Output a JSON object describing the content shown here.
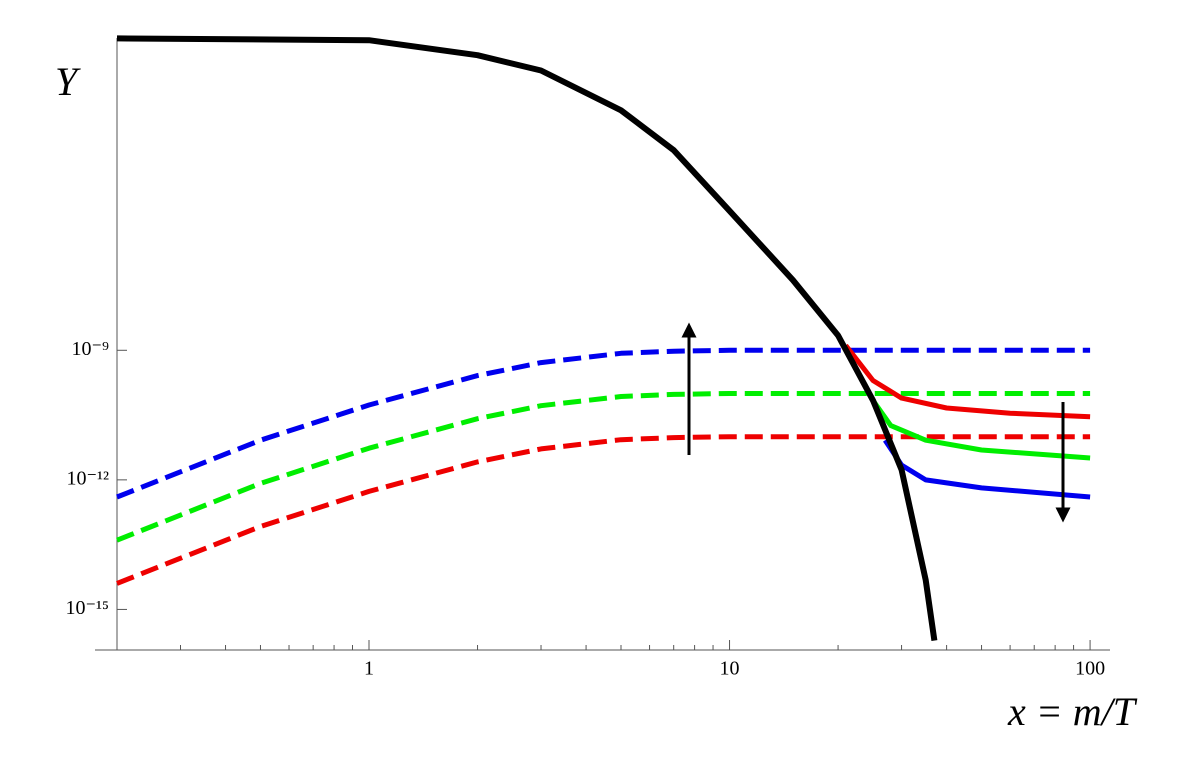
{
  "chart_data": {
    "type": "line",
    "y_label": "Y",
    "x_label": "x = m/T",
    "xlog": true,
    "ylog": true,
    "xlim": [
      0.2,
      110
    ],
    "ylim": [
      1.15e-16,
      0.017
    ],
    "xticks": [
      1,
      10,
      100
    ],
    "xminorticks": [
      0.3,
      0.4,
      0.5,
      0.6,
      0.7,
      0.8,
      0.9,
      2,
      3,
      4,
      5,
      6,
      7,
      8,
      9,
      20,
      30,
      40,
      50,
      60,
      70,
      80,
      90
    ],
    "yticks": [
      {
        "value": 1e-09,
        "label": "10⁻⁹"
      },
      {
        "value": 1e-12,
        "label": "10⁻¹²"
      },
      {
        "value": 1e-15,
        "label": "10⁻¹⁵"
      }
    ],
    "series": [
      {
        "color": "#0000ee",
        "dashed": true,
        "x": [
          0.2,
          0.5,
          1,
          2,
          3,
          5,
          7,
          10,
          100
        ],
        "values": [
          4e-13,
          8.3e-12,
          5.4e-11,
          2.6e-10,
          5.2e-10,
          8.5e-10,
          9.5e-10,
          1e-09,
          1e-09
        ]
      },
      {
        "color": "#00ee00",
        "dashed": true,
        "x": [
          0.2,
          0.5,
          1,
          2,
          3,
          5,
          7,
          10,
          100
        ],
        "values": [
          4e-14,
          8.3e-13,
          5.4e-12,
          2.6e-11,
          5.2e-11,
          8.5e-11,
          9.5e-11,
          1e-10,
          1e-10
        ]
      },
      {
        "color": "#ee0000",
        "dashed": true,
        "x": [
          0.2,
          0.5,
          1,
          2,
          3,
          5,
          7,
          10,
          100
        ],
        "values": [
          4e-15,
          8.3e-14,
          5.4e-13,
          2.6e-12,
          5.2e-12,
          8.5e-12,
          9.5e-12,
          1e-11,
          1e-11
        ]
      },
      {
        "color": "#ee0000",
        "dashed": false,
        "x": [
          21,
          25,
          30,
          40,
          60,
          100
        ],
        "values": [
          1.3e-09,
          2e-10,
          7.8e-11,
          4.6e-11,
          3.5e-11,
          2.9e-11
        ]
      },
      {
        "color": "#00ee00",
        "dashed": false,
        "x": [
          25,
          28,
          35,
          50,
          100
        ],
        "values": [
          6.9e-11,
          1.8e-11,
          8.3e-12,
          4.9e-12,
          3.2e-12
        ]
      },
      {
        "color": "#0000ee",
        "dashed": false,
        "x": [
          27,
          30,
          35,
          50,
          100
        ],
        "values": [
          8.3e-12,
          2.2e-12,
          1e-12,
          6.5e-13,
          4e-13
        ]
      },
      {
        "color": "#000000",
        "dashed": false,
        "x": [
          0.2,
          1,
          2,
          3,
          5,
          7,
          10,
          15,
          20,
          25,
          30,
          35,
          37
        ],
        "values": [
          0.0166,
          0.0151,
          0.0068,
          0.003,
          0.00036,
          4.3e-05,
          1.7e-06,
          4.2e-08,
          2.2e-09,
          6.9e-11,
          1.7e-12,
          4.8e-15,
          1.9e-16
        ]
      }
    ]
  }
}
